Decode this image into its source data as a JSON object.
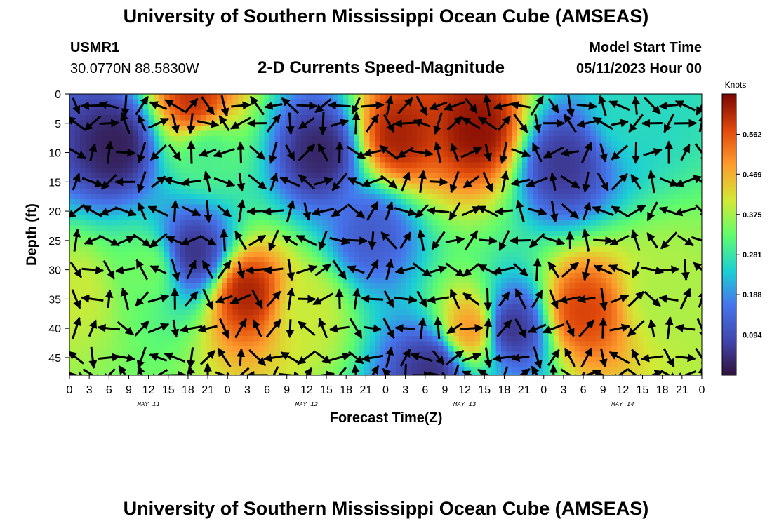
{
  "header": {
    "title": "University of Southern Mississippi Ocean Cube (AMSEAS)",
    "station": "USMR1",
    "coords": "30.0770N  88.5830W",
    "subtitle": "2-D Currents Speed-Magnitude",
    "model_label": "Model Start Time",
    "model_time": "05/11/2023 Hour 00",
    "footer_title": "University of Southern Mississippi Ocean Cube (AMSEAS)"
  },
  "chart_data": {
    "type": "heatmap",
    "xlabel": "Forecast Time(Z)",
    "ylabel": "Depth (ft)",
    "x_hours_range": [
      0,
      96
    ],
    "ylim": [
      0,
      48
    ],
    "y_inverted": true,
    "x_tick_labels": [
      "0",
      "3",
      "6",
      "9",
      "12",
      "15",
      "18",
      "21",
      "0",
      "3",
      "6",
      "9",
      "12",
      "15",
      "18",
      "21",
      "0",
      "3",
      "6",
      "9",
      "12",
      "15",
      "18",
      "21",
      "0",
      "3",
      "6",
      "9",
      "12",
      "15",
      "18",
      "21",
      "0"
    ],
    "y_tick_labels": [
      "0",
      "5",
      "10",
      "15",
      "20",
      "25",
      "30",
      "35",
      "40",
      "45"
    ],
    "day_labels": [
      "MAY 11",
      "MAY 12",
      "MAY 13",
      "MAY 14"
    ],
    "colorbar": {
      "unit": "Knots",
      "tick_labels": [
        "0.094",
        "0.188",
        "0.281",
        "0.375",
        "0.469",
        "0.562"
      ],
      "range": [
        0,
        0.656
      ]
    },
    "speed_blobs": [
      {
        "hour": 19,
        "depth": 1,
        "speed": 0.6
      },
      {
        "hour": 21,
        "depth": 10,
        "speed": 0.3
      },
      {
        "hour": 12,
        "depth": 30,
        "speed": 0.34
      },
      {
        "hour": 7,
        "depth": 9,
        "speed": 0.02
      },
      {
        "hour": 19,
        "depth": 27,
        "speed": 0.05
      },
      {
        "hour": 27,
        "depth": 34,
        "speed": 0.62
      },
      {
        "hour": 36,
        "depth": 37,
        "speed": 0.4
      },
      {
        "hour": 38,
        "depth": 10,
        "speed": 0.03
      },
      {
        "hour": 50,
        "depth": 7,
        "speed": 0.62
      },
      {
        "hour": 62,
        "depth": 6,
        "speed": 0.64
      },
      {
        "hour": 55,
        "depth": 47,
        "speed": 0.05
      },
      {
        "hour": 61,
        "depth": 40,
        "speed": 0.5
      },
      {
        "hour": 78,
        "depth": 37,
        "speed": 0.58
      },
      {
        "hour": 90,
        "depth": 34,
        "speed": 0.38
      },
      {
        "hour": 75,
        "depth": 12,
        "speed": 0.06
      },
      {
        "hour": 85,
        "depth": 3,
        "speed": 0.26
      },
      {
        "hour": 67,
        "depth": 40,
        "speed": 0.05
      },
      {
        "hour": 1,
        "depth": 34,
        "speed": 0.4
      },
      {
        "hour": 46,
        "depth": 24,
        "speed": 0.12
      }
    ],
    "vectors": {
      "hours": [
        1,
        3.5,
        6,
        8.5,
        11,
        13.5,
        16,
        18.5,
        21,
        23.5,
        26,
        28.5,
        31,
        33.5,
        36,
        38.5,
        41,
        43.5,
        46,
        48.5,
        51,
        53.5,
        56,
        58.5,
        61,
        63.5,
        66,
        68.5,
        71,
        73.5,
        76,
        78.5,
        81,
        83.5,
        86,
        88.5,
        91,
        93.5,
        96
      ],
      "depths": [
        2,
        5,
        10,
        15,
        20,
        25,
        30,
        35,
        40,
        45,
        48
      ]
    }
  }
}
